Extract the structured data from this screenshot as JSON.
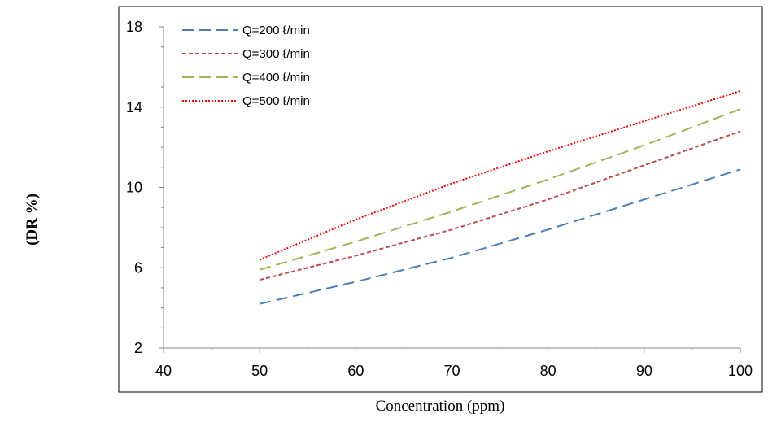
{
  "chart_data": {
    "type": "line",
    "xlabel": "Concentration (ppm)",
    "ylabel": "(DR %)",
    "xlim": [
      40,
      100
    ],
    "ylim": [
      2,
      18
    ],
    "xticks": [
      40,
      50,
      60,
      70,
      80,
      90,
      100
    ],
    "yticks": [
      2,
      6,
      10,
      14,
      18
    ],
    "grid": false,
    "legend_position": "top-left",
    "x": [
      50,
      60,
      70,
      80,
      90,
      100
    ],
    "series": [
      {
        "name": "Q=200 ℓ/min",
        "values": [
          4.2,
          5.3,
          6.5,
          7.9,
          9.4,
          10.9
        ],
        "color": "#4a7ebb",
        "dash": "long-dash"
      },
      {
        "name": "Q=300 ℓ/min",
        "values": [
          5.4,
          6.6,
          7.9,
          9.4,
          11.1,
          12.8
        ],
        "color": "#be4b48",
        "dash": "short-dash"
      },
      {
        "name": "Q=400 ℓ/min",
        "values": [
          5.9,
          7.3,
          8.8,
          10.4,
          12.1,
          13.9
        ],
        "color": "#98b954",
        "dash": "long-dash"
      },
      {
        "name": "Q=500 ℓ/min",
        "values": [
          6.4,
          8.4,
          10.2,
          11.8,
          13.3,
          14.8
        ],
        "color": "#ff0000",
        "dash": "dotted"
      }
    ]
  }
}
